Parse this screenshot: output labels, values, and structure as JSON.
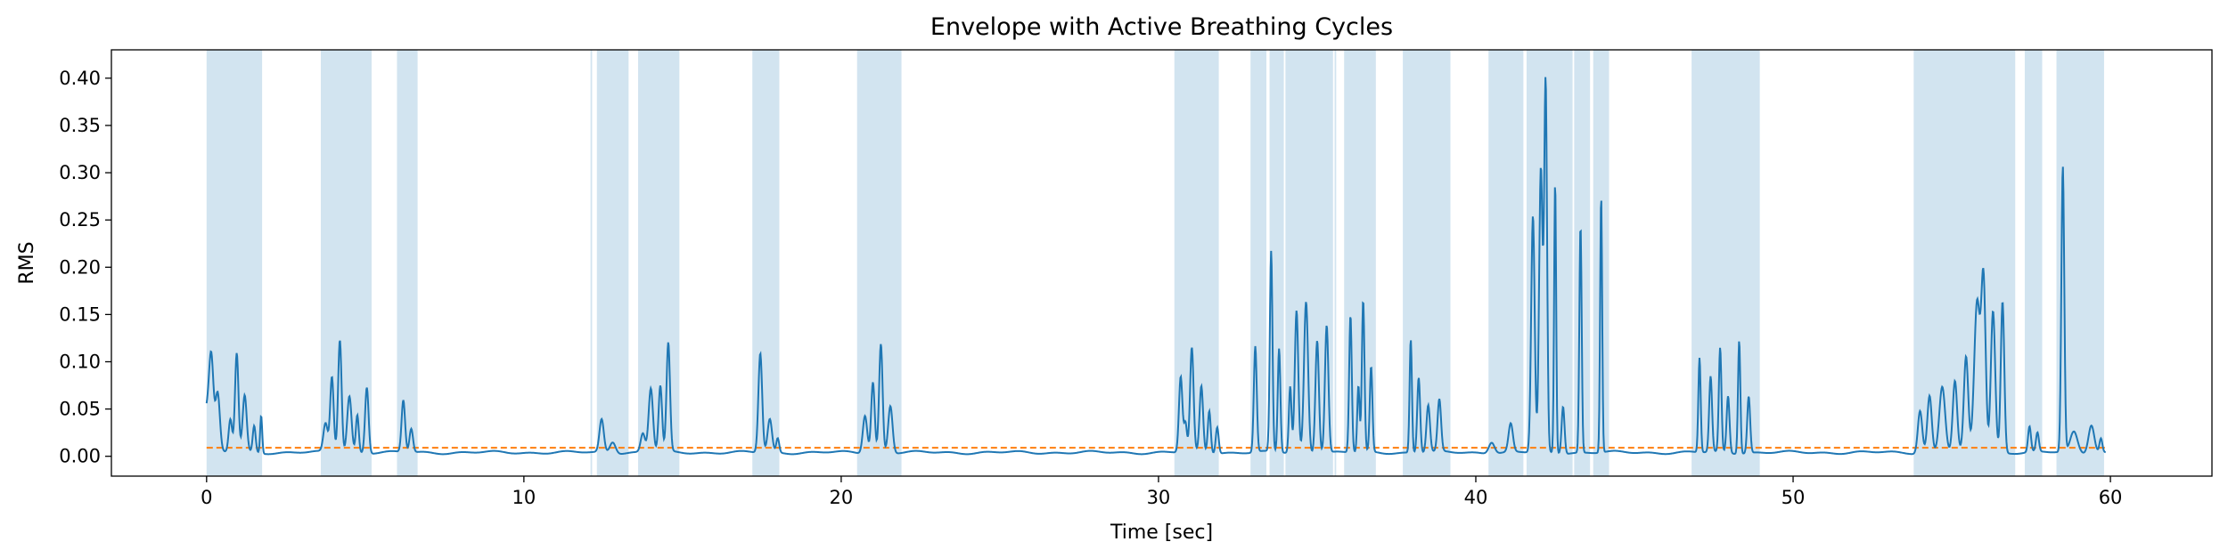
{
  "chart_data": {
    "type": "line",
    "title": "Envelope with Active Breathing Cycles",
    "xlabel": "Time [sec]",
    "ylabel": "RMS",
    "xlim": [
      -3.0,
      63.2
    ],
    "ylim": [
      -0.021,
      0.43
    ],
    "xticks": [
      0,
      10,
      20,
      30,
      40,
      50,
      60
    ],
    "xtick_labels": [
      "0",
      "10",
      "20",
      "30",
      "40",
      "50",
      "60"
    ],
    "yticks": [
      0.0,
      0.05,
      0.1,
      0.15,
      0.2,
      0.25,
      0.3,
      0.35,
      0.4
    ],
    "ytick_labels": [
      "0.00",
      "0.05",
      "0.10",
      "0.15",
      "0.20",
      "0.25",
      "0.30",
      "0.35",
      "0.40"
    ],
    "grid": false,
    "threshold": {
      "y": 0.009,
      "color": "#ff7f0e",
      "style": "dashed"
    },
    "series_color": "#1f77b4",
    "band_color": "#1f77b4",
    "band_opacity": 0.2,
    "active_cycles": [
      [
        0.0,
        1.75
      ],
      [
        3.6,
        5.2
      ],
      [
        6.0,
        6.65
      ],
      [
        12.1,
        12.15
      ],
      [
        12.3,
        13.3
      ],
      [
        13.6,
        14.9
      ],
      [
        17.2,
        18.05
      ],
      [
        20.5,
        21.9
      ],
      [
        30.5,
        31.9
      ],
      [
        32.9,
        33.4
      ],
      [
        33.5,
        33.95
      ],
      [
        34.0,
        35.5
      ],
      [
        35.55,
        35.6
      ],
      [
        35.85,
        36.85
      ],
      [
        37.7,
        39.2
      ],
      [
        40.4,
        41.5
      ],
      [
        41.6,
        43.05
      ],
      [
        43.1,
        43.6
      ],
      [
        43.7,
        44.2
      ],
      [
        46.8,
        48.95
      ],
      [
        53.8,
        57.0
      ],
      [
        57.3,
        57.85
      ],
      [
        58.3,
        59.8
      ]
    ],
    "envelope": {
      "baseline": 0.004,
      "peaks": [
        [
          0.0,
          0.045,
          0.3
        ],
        [
          0.15,
          0.08,
          0.15
        ],
        [
          0.35,
          0.06,
          0.15
        ],
        [
          0.75,
          0.035,
          0.12
        ],
        [
          0.95,
          0.105,
          0.12
        ],
        [
          1.2,
          0.06,
          0.14
        ],
        [
          1.5,
          0.028,
          0.1
        ],
        [
          1.72,
          0.04,
          0.07
        ],
        [
          3.75,
          0.03,
          0.15
        ],
        [
          3.95,
          0.08,
          0.12
        ],
        [
          4.2,
          0.12,
          0.12
        ],
        [
          4.5,
          0.06,
          0.15
        ],
        [
          4.75,
          0.04,
          0.1
        ],
        [
          5.05,
          0.07,
          0.12
        ],
        [
          6.2,
          0.055,
          0.12
        ],
        [
          6.45,
          0.025,
          0.12
        ],
        [
          12.45,
          0.035,
          0.15
        ],
        [
          12.8,
          0.012,
          0.2
        ],
        [
          14.0,
          0.068,
          0.15
        ],
        [
          14.3,
          0.07,
          0.12
        ],
        [
          14.55,
          0.115,
          0.12
        ],
        [
          13.75,
          0.02,
          0.15
        ],
        [
          17.45,
          0.105,
          0.13
        ],
        [
          17.75,
          0.035,
          0.15
        ],
        [
          18.0,
          0.015,
          0.1
        ],
        [
          20.75,
          0.04,
          0.15
        ],
        [
          21.0,
          0.075,
          0.12
        ],
        [
          21.25,
          0.115,
          0.12
        ],
        [
          21.55,
          0.05,
          0.15
        ],
        [
          30.7,
          0.08,
          0.12
        ],
        [
          30.85,
          0.03,
          0.1
        ],
        [
          31.05,
          0.11,
          0.12
        ],
        [
          31.35,
          0.07,
          0.12
        ],
        [
          31.6,
          0.045,
          0.1
        ],
        [
          31.85,
          0.028,
          0.1
        ],
        [
          33.05,
          0.112,
          0.1
        ],
        [
          33.55,
          0.212,
          0.09
        ],
        [
          33.8,
          0.11,
          0.09
        ],
        [
          34.15,
          0.07,
          0.09
        ],
        [
          34.35,
          0.15,
          0.12
        ],
        [
          34.65,
          0.16,
          0.14
        ],
        [
          35.0,
          0.12,
          0.12
        ],
        [
          35.3,
          0.135,
          0.12
        ],
        [
          36.05,
          0.145,
          0.09
        ],
        [
          36.45,
          0.16,
          0.09
        ],
        [
          36.3,
          0.07,
          0.08
        ],
        [
          36.7,
          0.09,
          0.09
        ],
        [
          37.95,
          0.12,
          0.08
        ],
        [
          38.2,
          0.08,
          0.1
        ],
        [
          38.5,
          0.05,
          0.12
        ],
        [
          38.85,
          0.055,
          0.12
        ],
        [
          40.5,
          0.012,
          0.2
        ],
        [
          41.1,
          0.03,
          0.15
        ],
        [
          41.8,
          0.25,
          0.12
        ],
        [
          42.05,
          0.3,
          0.12
        ],
        [
          42.2,
          0.39,
          0.1
        ],
        [
          42.5,
          0.287,
          0.07
        ],
        [
          42.75,
          0.05,
          0.1
        ],
        [
          43.3,
          0.24,
          0.08
        ],
        [
          43.95,
          0.272,
          0.07
        ],
        [
          47.05,
          0.1,
          0.08
        ],
        [
          47.4,
          0.08,
          0.1
        ],
        [
          47.7,
          0.11,
          0.09
        ],
        [
          47.95,
          0.06,
          0.1
        ],
        [
          48.3,
          0.12,
          0.08
        ],
        [
          48.6,
          0.06,
          0.1
        ],
        [
          54.0,
          0.045,
          0.15
        ],
        [
          54.3,
          0.06,
          0.15
        ],
        [
          54.7,
          0.07,
          0.2
        ],
        [
          55.1,
          0.075,
          0.15
        ],
        [
          55.45,
          0.1,
          0.15
        ],
        [
          55.8,
          0.16,
          0.2
        ],
        [
          56.0,
          0.18,
          0.15
        ],
        [
          56.3,
          0.15,
          0.15
        ],
        [
          56.6,
          0.16,
          0.12
        ],
        [
          57.45,
          0.027,
          0.1
        ],
        [
          57.7,
          0.02,
          0.1
        ],
        [
          58.5,
          0.302,
          0.1
        ],
        [
          58.85,
          0.022,
          0.25
        ],
        [
          59.4,
          0.03,
          0.2
        ],
        [
          59.7,
          0.015,
          0.1
        ]
      ]
    }
  }
}
